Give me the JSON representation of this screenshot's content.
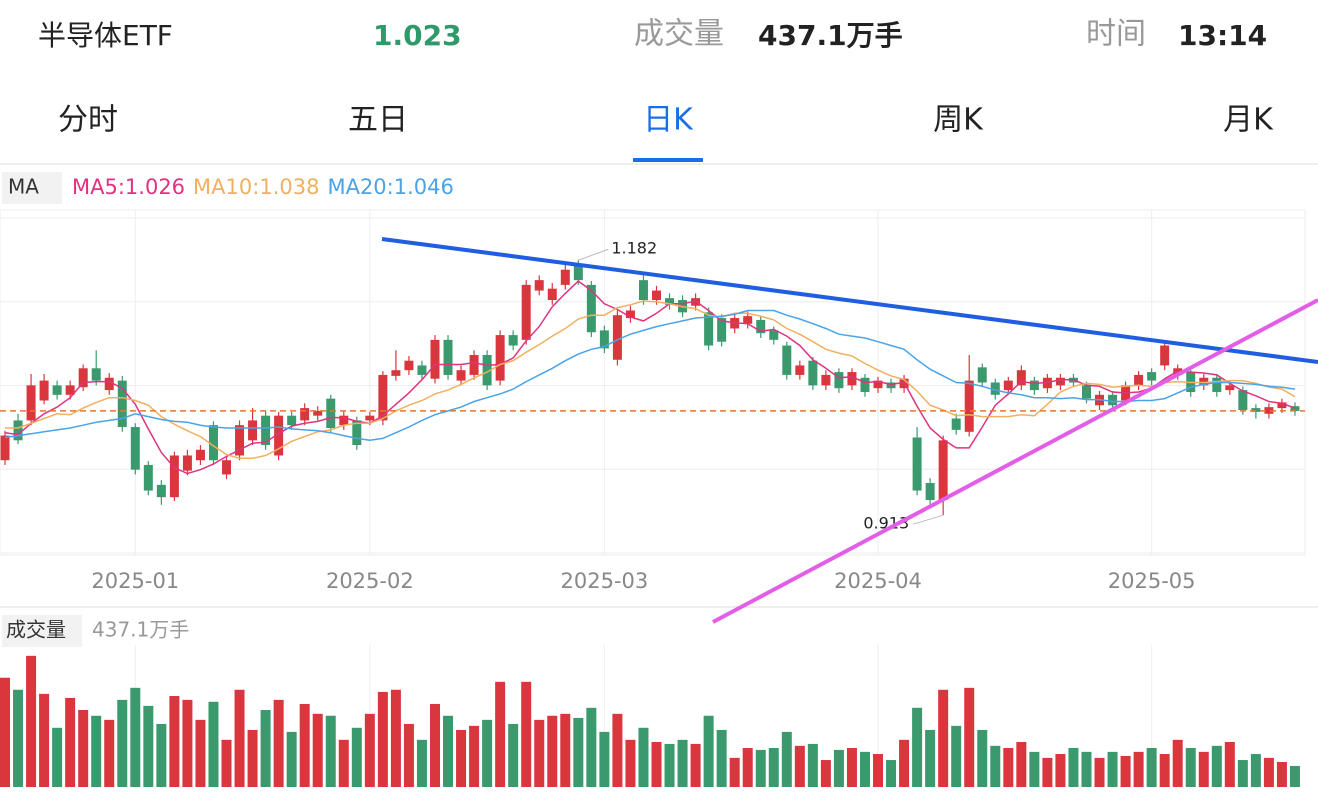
{
  "header": {
    "name": "半导体ETF",
    "price": 1.023,
    "volume_label": "成交量",
    "volume": "437.1万手",
    "time_label": "时间",
    "time": "13:14"
  },
  "tabs": [
    "分时",
    "五日",
    "日K",
    "周K",
    "月K"
  ],
  "selected_tab": "日K",
  "chart_data": {
    "type": "candlestick",
    "indicator": "MA",
    "ylim": [
      0.871,
      1.235
    ],
    "xticks": [
      {
        "value": 10,
        "label": "2025-01"
      },
      {
        "value": 28,
        "label": "2025-02"
      },
      {
        "value": 46,
        "label": "2025-03"
      },
      {
        "value": 67,
        "label": "2025-04"
      },
      {
        "value": 88,
        "label": "2025-05"
      }
    ],
    "up_color": "#d9363e",
    "down_color": "#3a9a6e",
    "open": [
      0.971,
      1.013,
      1.013,
      1.034,
      1.05,
      1.04,
      1.048,
      1.068,
      1.045,
      1.055,
      1.006,
      0.966,
      0.945,
      0.932,
      0.96,
      0.971,
      1.008,
      0.956,
      0.976,
      0.992,
      1.018,
      0.976,
      1.018,
      1.013,
      1.018,
      1.036,
      1.008,
      1.013,
      1.013,
      1.013,
      1.06,
      1.066,
      1.071,
      1.057,
      1.098,
      1.055,
      1.061,
      1.082,
      1.055,
      1.103,
      1.098,
      1.15,
      1.14,
      1.156,
      1.177,
      1.156,
      1.108,
      1.077,
      1.121,
      1.161,
      1.14,
      1.142,
      1.14,
      1.134,
      1.127,
      1.121,
      1.11,
      1.115,
      1.119,
      1.108,
      1.092,
      1.061,
      1.076,
      1.05,
      1.064,
      1.05,
      1.058,
      1.047,
      1.053,
      1.047,
      0.995,
      0.947,
      0.929,
      1.015,
      1.001,
      1.069,
      1.053,
      1.045,
      1.05,
      1.055,
      1.047,
      1.05,
      1.058,
      1.05,
      1.029,
      1.04,
      1.034,
      1.05,
      1.064,
      1.071,
      1.061,
      1.064,
      1.05,
      1.058,
      1.045,
      1.045,
      1.026,
      1.02,
      1.026,
      1.028
    ],
    "high": [
      1.002,
      1.02,
      1.062,
      1.062,
      1.055,
      1.055,
      1.072,
      1.087,
      1.063,
      1.06,
      1.01,
      0.97,
      0.95,
      0.98,
      0.982,
      0.987,
      1.012,
      0.975,
      1.013,
      1.026,
      1.024,
      1.022,
      1.022,
      1.031,
      1.028,
      1.04,
      1.023,
      1.017,
      1.022,
      1.065,
      1.087,
      1.081,
      1.076,
      1.103,
      1.103,
      1.071,
      1.087,
      1.087,
      1.108,
      1.108,
      1.161,
      1.166,
      1.158,
      1.177,
      1.182,
      1.16,
      1.113,
      1.129,
      1.134,
      1.168,
      1.155,
      1.147,
      1.145,
      1.147,
      1.132,
      1.125,
      1.125,
      1.128,
      1.123,
      1.112,
      1.096,
      1.076,
      1.08,
      1.066,
      1.068,
      1.068,
      1.062,
      1.059,
      1.057,
      1.061,
      1.006,
      0.952,
      0.997,
      1.02,
      1.082,
      1.073,
      1.057,
      1.059,
      1.071,
      1.059,
      1.062,
      1.062,
      1.062,
      1.054,
      1.044,
      1.044,
      1.054,
      1.065,
      1.068,
      1.097,
      1.072,
      1.068,
      1.062,
      1.062,
      1.054,
      1.049,
      1.03,
      1.031,
      1.036,
      1.032
    ],
    "low": [
      0.966,
      0.988,
      1.008,
      1.03,
      1.035,
      1.035,
      1.044,
      1.05,
      1.04,
      1.001,
      0.956,
      0.934,
      0.924,
      0.928,
      0.955,
      0.966,
      0.966,
      0.951,
      0.971,
      0.987,
      0.982,
      0.971,
      1.003,
      1.008,
      1.013,
      1.0,
      1.003,
      0.982,
      1.008,
      1.008,
      1.055,
      1.061,
      1.056,
      1.052,
      1.056,
      1.05,
      1.056,
      1.045,
      1.05,
      1.087,
      1.093,
      1.145,
      1.135,
      1.151,
      1.156,
      1.101,
      1.084,
      1.071,
      1.116,
      1.135,
      1.135,
      1.13,
      1.122,
      1.129,
      1.087,
      1.091,
      1.105,
      1.11,
      1.1,
      1.093,
      1.056,
      1.056,
      1.045,
      1.045,
      1.042,
      1.045,
      1.038,
      1.042,
      1.042,
      1.042,
      0.934,
      0.924,
      0.913,
      0.998,
      0.996,
      1.048,
      1.035,
      1.04,
      1.045,
      1.04,
      1.042,
      1.045,
      1.048,
      1.031,
      1.024,
      1.024,
      1.029,
      1.045,
      1.05,
      1.066,
      1.056,
      1.038,
      1.045,
      1.038,
      1.04,
      1.019,
      1.015,
      1.015,
      1.021,
      1.018
    ],
    "close": [
      0.997,
      0.992,
      1.05,
      1.055,
      1.04,
      1.05,
      1.068,
      1.055,
      1.058,
      1.006,
      0.961,
      0.939,
      0.932,
      0.976,
      0.976,
      0.982,
      0.971,
      0.971,
      1.008,
      1.013,
      0.987,
      1.018,
      1.008,
      1.026,
      1.023,
      1.005,
      1.018,
      0.987,
      1.018,
      1.061,
      1.066,
      1.076,
      1.061,
      1.098,
      1.061,
      1.066,
      1.082,
      1.05,
      1.103,
      1.092,
      1.156,
      1.161,
      1.152,
      1.172,
      1.161,
      1.106,
      1.089,
      1.124,
      1.129,
      1.14,
      1.15,
      1.135,
      1.127,
      1.142,
      1.092,
      1.096,
      1.121,
      1.123,
      1.105,
      1.098,
      1.061,
      1.071,
      1.05,
      1.061,
      1.047,
      1.064,
      1.043,
      1.055,
      1.047,
      1.057,
      0.939,
      0.929,
      0.992,
      1.003,
      1.055,
      1.053,
      1.04,
      1.055,
      1.066,
      1.045,
      1.058,
      1.058,
      1.053,
      1.036,
      1.04,
      1.029,
      1.05,
      1.061,
      1.055,
      1.092,
      1.068,
      1.043,
      1.058,
      1.043,
      1.05,
      1.024,
      1.022,
      1.027,
      1.032,
      1.023
    ],
    "max_label": "1.182",
    "min_label": "0.913",
    "series": [
      {
        "name": "MA5",
        "legend": "MA5:1.026",
        "color": "#e0337f",
        "values": [
          1.0,
          0.998,
          1.01,
          1.02,
          1.027,
          1.037,
          1.053,
          1.054,
          1.054,
          1.047,
          1.03,
          1.004,
          0.979,
          0.963,
          0.957,
          0.961,
          0.967,
          0.975,
          0.982,
          0.989,
          0.99,
          0.999,
          1.007,
          1.01,
          1.012,
          1.016,
          1.016,
          1.012,
          1.01,
          1.018,
          1.03,
          1.042,
          1.056,
          1.072,
          1.072,
          1.072,
          1.074,
          1.071,
          1.072,
          1.079,
          1.097,
          1.112,
          1.133,
          1.147,
          1.16,
          1.15,
          1.136,
          1.13,
          1.122,
          1.118,
          1.126,
          1.136,
          1.136,
          1.139,
          1.129,
          1.118,
          1.116,
          1.115,
          1.107,
          1.109,
          1.102,
          1.092,
          1.077,
          1.068,
          1.058,
          1.059,
          1.053,
          1.054,
          1.051,
          1.053,
          1.028,
          1.005,
          0.993,
          0.984,
          0.984,
          1.006,
          1.029,
          1.041,
          1.054,
          1.052,
          1.053,
          1.056,
          1.056,
          1.05,
          1.049,
          1.043,
          1.042,
          1.043,
          1.047,
          1.057,
          1.065,
          1.064,
          1.063,
          1.061,
          1.052,
          1.044,
          1.039,
          1.033,
          1.031,
          1.026
        ]
      },
      {
        "name": "MA10",
        "legend": "MA10:1.038",
        "color": "#f0b060",
        "values": [
          1.005,
          1.005,
          1.01,
          1.015,
          1.02,
          1.019,
          1.026,
          1.032,
          1.037,
          1.037,
          1.034,
          1.029,
          1.017,
          1.009,
          1.002,
          0.996,
          0.986,
          0.977,
          0.973,
          0.973,
          0.976,
          0.983,
          0.991,
          0.996,
          1.001,
          1.003,
          1.008,
          1.01,
          1.01,
          1.015,
          1.023,
          1.029,
          1.034,
          1.041,
          1.045,
          1.051,
          1.058,
          1.064,
          1.072,
          1.076,
          1.085,
          1.093,
          1.102,
          1.11,
          1.12,
          1.124,
          1.124,
          1.132,
          1.135,
          1.139,
          1.138,
          1.136,
          1.133,
          1.131,
          1.124,
          1.122,
          1.126,
          1.126,
          1.123,
          1.119,
          1.11,
          1.104,
          1.096,
          1.088,
          1.084,
          1.081,
          1.073,
          1.066,
          1.06,
          1.056,
          1.044,
          1.029,
          1.024,
          1.018,
          1.019,
          1.017,
          1.017,
          1.017,
          1.019,
          1.018,
          1.03,
          1.043,
          1.049,
          1.052,
          1.051,
          1.048,
          1.049,
          1.05,
          1.049,
          1.053,
          1.054,
          1.053,
          1.053,
          1.054,
          1.055,
          1.055,
          1.052,
          1.048,
          1.046,
          1.038
        ]
      },
      {
        "name": "MA20",
        "legend": "MA20:1.046",
        "color": "#4aa3e8",
        "values": [
          0.995,
          0.997,
          0.999,
          1.001,
          1.003,
          1.005,
          1.008,
          1.011,
          1.013,
          1.015,
          1.02,
          1.017,
          1.014,
          1.012,
          1.011,
          1.008,
          1.006,
          1.005,
          1.005,
          1.005,
          1.005,
          1.006,
          1.004,
          1.003,
          1.002,
          1.0,
          0.997,
          0.994,
          0.992,
          0.994,
          1.0,
          1.006,
          1.013,
          1.019,
          1.023,
          1.027,
          1.033,
          1.037,
          1.041,
          1.046,
          1.054,
          1.061,
          1.068,
          1.076,
          1.083,
          1.088,
          1.091,
          1.098,
          1.104,
          1.108,
          1.112,
          1.115,
          1.118,
          1.121,
          1.122,
          1.123,
          1.125,
          1.129,
          1.129,
          1.129,
          1.124,
          1.12,
          1.115,
          1.11,
          1.104,
          1.102,
          1.1,
          1.096,
          1.092,
          1.088,
          1.077,
          1.067,
          1.06,
          1.053,
          1.052,
          1.049,
          1.045,
          1.042,
          1.04,
          1.037,
          1.037,
          1.036,
          1.037,
          1.035,
          1.035,
          1.033,
          1.033,
          1.034,
          1.034,
          1.036,
          1.042,
          1.048,
          1.051,
          1.053,
          1.053,
          1.052,
          1.051,
          1.049,
          1.048,
          1.046
        ]
      }
    ],
    "volume": {
      "label": "成交量",
      "last_label": "437.1万手",
      "ylim": [
        0,
        2950
      ],
      "values": [
        2270,
        2020,
        2725,
        1935,
        1230,
        1850,
        1600,
        1480,
        1395,
        1810,
        2060,
        1685,
        1310,
        1890,
        1810,
        1395,
        1770,
        980,
        2020,
        1185,
        1600,
        1810,
        1145,
        1725,
        1520,
        1480,
        980,
        1230,
        1520,
        1975,
        2020,
        1310,
        980,
        1725,
        1480,
        1185,
        1270,
        1395,
        2185,
        1310,
        2185,
        1395,
        1480,
        1520,
        1435,
        1645,
        1145,
        1520,
        980,
        1230,
        935,
        895,
        980,
        895,
        1480,
        1185,
        605,
        810,
        770,
        810,
        1145,
        855,
        895,
        560,
        770,
        810,
        730,
        685,
        560,
        980,
        1645,
        1185,
        2020,
        1270,
        2060,
        1185,
        855,
        810,
        935,
        730,
        605,
        685,
        810,
        730,
        605,
        730,
        645,
        730,
        810,
        685,
        980,
        810,
        730,
        855,
        935,
        560,
        685,
        605,
        520,
        437.1
      ]
    }
  }
}
